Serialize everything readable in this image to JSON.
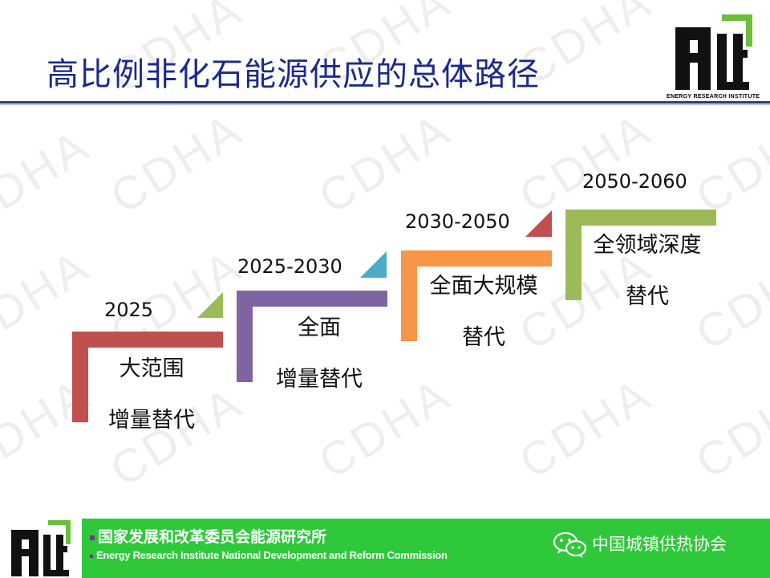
{
  "slide": {
    "title": "高比例非化石能源供应的总体路径",
    "watermark": "CDHA",
    "logo_caption": "ENERGY RESEARCH INSTITUTE"
  },
  "steps": [
    {
      "year": "2025",
      "line1": "大范围",
      "line2": "增量替代",
      "color": "#c0504d",
      "tri_color": "#9bbb59"
    },
    {
      "year": "2025-2030",
      "line1": "全面",
      "line2": "增量替代",
      "color": "#8064a2",
      "tri_color": "#4bacc6"
    },
    {
      "year": "2030-2050",
      "line1": "全面大规模",
      "line2": "替代",
      "color": "#f79646",
      "tri_color": "#c0504d"
    },
    {
      "year": "2050-2060",
      "line1": "全领域深度",
      "line2": "替代",
      "color": "#9bbb59"
    }
  ],
  "footer": {
    "org_cn": "国家发展和改革委员会能源研究所",
    "org_en": "Energy Research Institute National Development and Reform Commission",
    "association": "中国城镇供热协会",
    "bg_color": "#2ec83a"
  }
}
